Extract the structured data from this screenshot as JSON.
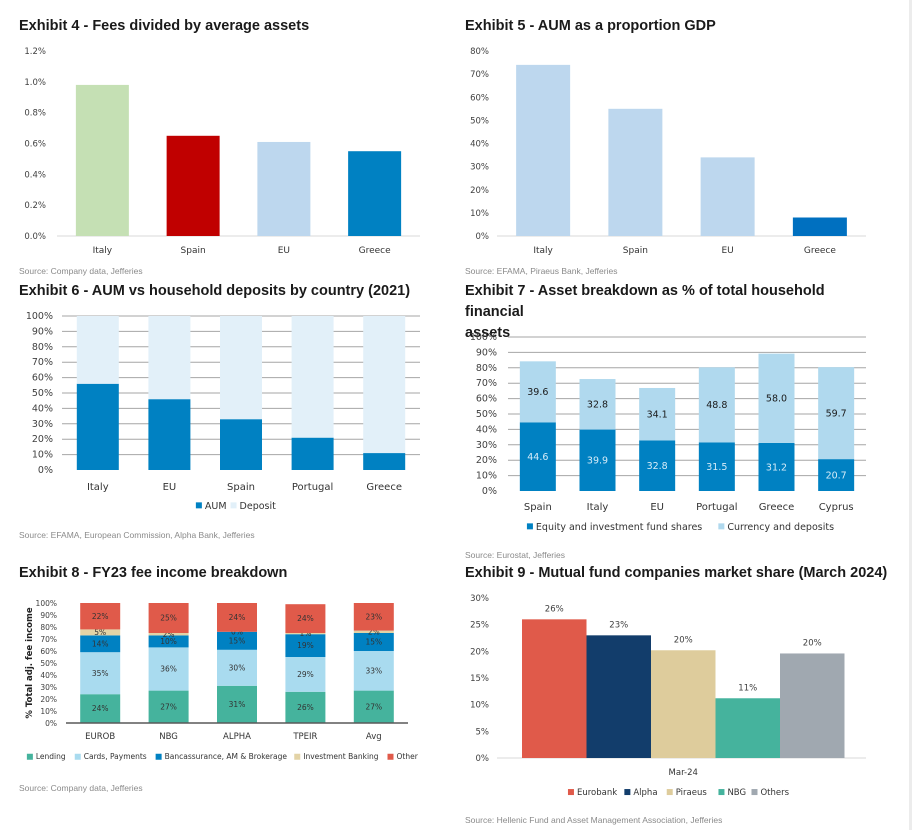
{
  "page": {
    "scrollbar": true
  },
  "chart_data": [
    {
      "id": "ex4",
      "type": "bar",
      "title": "Exhibit 4 - Fees divided by average assets",
      "xlabel": "",
      "ylabel": "",
      "categories": [
        "Italy",
        "Spain",
        "EU",
        "Greece"
      ],
      "values": [
        0.98,
        0.65,
        0.61,
        0.55
      ],
      "colors": [
        "#c5e0b4",
        "#c00000",
        "#bdd7ee",
        "#0081c2"
      ],
      "ylim": [
        0,
        1.2
      ],
      "yticks": [
        0,
        0.2,
        0.4,
        0.6,
        0.8,
        1.0,
        1.2
      ],
      "ytick_labels": [
        "0.0%",
        "0.2%",
        "0.4%",
        "0.6%",
        "0.8%",
        "1.0%",
        "1.2%"
      ],
      "grid": false,
      "source": "Source: Company data, Jefferies"
    },
    {
      "id": "ex5",
      "type": "bar",
      "title": "Exhibit 5 - AUM as a proportion GDP",
      "xlabel": "",
      "ylabel": "",
      "categories": [
        "Italy",
        "Spain",
        "EU",
        "Greece"
      ],
      "values": [
        74,
        55,
        34,
        8
      ],
      "colors": [
        "#bdd7ee",
        "#bdd7ee",
        "#bdd7ee",
        "#0070c0"
      ],
      "ylim": [
        0,
        80
      ],
      "yticks": [
        0,
        10,
        20,
        30,
        40,
        50,
        60,
        70,
        80
      ],
      "ytick_labels": [
        "0%",
        "10%",
        "20%",
        "30%",
        "40%",
        "50%",
        "60%",
        "70%",
        "80%"
      ],
      "grid": false,
      "source": "Source: EFAMA, Piraeus Bank, Jefferies"
    },
    {
      "id": "ex6",
      "type": "bar",
      "stacked": true,
      "title": "Exhibit 6 - AUM vs household deposits by country (2021)",
      "xlabel": "",
      "ylabel": "",
      "categories": [
        "Italy",
        "EU",
        "Spain",
        "Portugal",
        "Greece"
      ],
      "series": [
        {
          "name": "AUM",
          "color": "#0081c2",
          "values": [
            56,
            46,
            33,
            21,
            11
          ]
        },
        {
          "name": "Deposit",
          "color": "#e2f0f9",
          "values": [
            44,
            54,
            67,
            79,
            89
          ]
        }
      ],
      "ylim": [
        0,
        100
      ],
      "yticks": [
        0,
        10,
        20,
        30,
        40,
        50,
        60,
        70,
        80,
        90,
        100
      ],
      "ytick_labels": [
        "0%",
        "10%",
        "20%",
        "30%",
        "40%",
        "50%",
        "60%",
        "70%",
        "80%",
        "90%",
        "100%"
      ],
      "grid": true,
      "legend": "bottom",
      "source": "Source: EFAMA, European Commission, Alpha Bank, Jefferies"
    },
    {
      "id": "ex7",
      "type": "bar",
      "stacked": true,
      "title": "Exhibit 7 - Asset breakdown as % of total household financial assets",
      "title_lines": [
        "Exhibit 7 - Asset breakdown as % of total household financial",
        "assets"
      ],
      "xlabel": "",
      "ylabel": "",
      "categories": [
        "Spain",
        "Italy",
        "EU",
        "Portugal",
        "Greece",
        "Cyprus"
      ],
      "series": [
        {
          "name": "Equity and investment fund shares",
          "color": "#0081c2",
          "label_color": "#d6ecf8",
          "values": [
            44.6,
            39.9,
            32.8,
            31.5,
            31.2,
            20.7
          ],
          "labels": [
            "44.6",
            "39.9",
            "32.8",
            "31.5",
            "31.2",
            "20.7"
          ]
        },
        {
          "name": "Currency and deposits",
          "color": "#b0d9ee",
          "label_color": "#1a1a1a",
          "values": [
            39.6,
            32.8,
            34.1,
            48.8,
            58.0,
            59.7
          ],
          "labels": [
            "39.6",
            "32.8",
            "34.1",
            "48.8",
            "58.0",
            "59.7"
          ]
        }
      ],
      "ylim": [
        0,
        100
      ],
      "yticks": [
        0,
        10,
        20,
        30,
        40,
        50,
        60,
        70,
        80,
        90,
        100
      ],
      "ytick_labels": [
        "0%",
        "10%",
        "20%",
        "30%",
        "40%",
        "50%",
        "60%",
        "70%",
        "80%",
        "90%",
        "100%"
      ],
      "grid": true,
      "legend": "bottom",
      "source": "Source: Eurostat, Jefferies"
    },
    {
      "id": "ex8",
      "type": "bar",
      "stacked": true,
      "title": "Exhibit 8 - FY23 fee income breakdown",
      "xlabel": "",
      "ylabel": "% Total adj. fee income",
      "categories": [
        "EUROB",
        "NBG",
        "ALPHA",
        "TPEIR",
        "Avg"
      ],
      "series": [
        {
          "name": "Lending",
          "color": "#45b39d",
          "values": [
            24,
            27,
            31,
            26,
            27
          ],
          "labels": [
            "24%",
            "27%",
            "31%",
            "26%",
            "27%"
          ]
        },
        {
          "name": "Cards, Payments",
          "color": "#a9dbef",
          "values": [
            35,
            36,
            30,
            29,
            33
          ],
          "labels": [
            "35%",
            "36%",
            "30%",
            "29%",
            "33%"
          ]
        },
        {
          "name": "Bancassurance, AM & Brokerage",
          "color": "#0081c2",
          "values": [
            14,
            10,
            15,
            19,
            15
          ],
          "labels": [
            "14%",
            "10%",
            "15%",
            "19%",
            "15%"
          ]
        },
        {
          "name": "Investment Banking",
          "color": "#e3d3a6",
          "values": [
            5,
            2,
            0,
            1,
            2
          ],
          "labels": [
            "5%",
            "2%",
            "0%",
            "1%",
            "2%"
          ]
        },
        {
          "name": "Other",
          "color": "#e05a4a",
          "values": [
            22,
            25,
            24,
            24,
            23
          ],
          "labels": [
            "22%",
            "25%",
            "24%",
            "24%",
            "23%"
          ]
        }
      ],
      "ylim": [
        0,
        100
      ],
      "yticks": [
        0,
        10,
        20,
        30,
        40,
        50,
        60,
        70,
        80,
        90,
        100
      ],
      "ytick_labels": [
        "0%",
        "10%",
        "20%",
        "30%",
        "40%",
        "50%",
        "60%",
        "70%",
        "80%",
        "90%",
        "100%"
      ],
      "grid": false,
      "legend": "bottom",
      "source": "Source: Company data, Jefferies"
    },
    {
      "id": "ex9",
      "type": "bar",
      "title": "Exhibit 9 - Mutual fund companies market share (March 2024)",
      "xlabel": "",
      "ylabel": "",
      "categories": [
        "Mar-24"
      ],
      "series": [
        {
          "name": "Eurobank",
          "color": "#e05a4a",
          "values": [
            26
          ],
          "labels": [
            "26%"
          ]
        },
        {
          "name": "Alpha",
          "color": "#123d6b",
          "values": [
            23
          ],
          "labels": [
            "23%"
          ]
        },
        {
          "name": "Piraeus",
          "color": "#decc9c",
          "values": [
            20.2
          ],
          "labels": [
            "20%"
          ]
        },
        {
          "name": "NBG",
          "color": "#45b39d",
          "values": [
            11.2
          ],
          "labels": [
            "11%"
          ]
        },
        {
          "name": "Others",
          "color": "#a0a8b0",
          "values": [
            19.6
          ],
          "labels": [
            "20%"
          ]
        }
      ],
      "ylim": [
        0,
        30
      ],
      "yticks": [
        0,
        5,
        10,
        15,
        20,
        25,
        30
      ],
      "ytick_labels": [
        "0%",
        "5%",
        "10%",
        "15%",
        "20%",
        "25%",
        "30%"
      ],
      "grid": false,
      "legend": "bottom",
      "source": "Source: Hellenic Fund and Asset Management Association, Jefferies"
    }
  ]
}
